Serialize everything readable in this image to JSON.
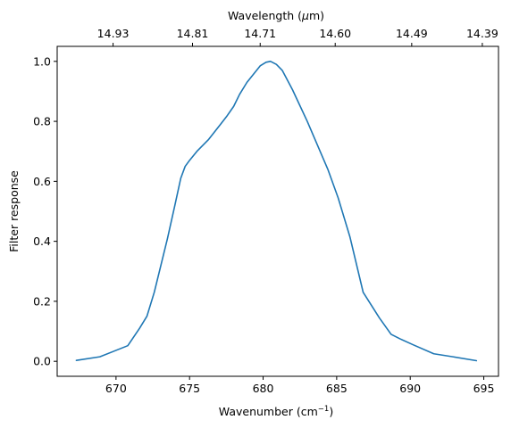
{
  "chart_data": {
    "type": "line",
    "xlabel": "Wavenumber (cm",
    "xlabel_sup": "−1",
    "xlabel_suffix": ")",
    "ylabel": "Filter response",
    "top_xlabel_prefix": "Wavelength (",
    "top_xlabel_symbol": "μ",
    "top_xlabel_suffix": "m)",
    "xlim": [
      666,
      696
    ],
    "ylim": [
      -0.05,
      1.05
    ],
    "x_ticks": [
      670,
      675,
      680,
      685,
      690,
      695
    ],
    "y_ticks": [
      0.0,
      0.2,
      0.4,
      0.6,
      0.8,
      1.0
    ],
    "y_tick_labels": [
      "0.0",
      "0.2",
      "0.4",
      "0.6",
      "0.8",
      "1.0"
    ],
    "top_ticks": [
      {
        "label": "14.93",
        "wavenumber": 669.8
      },
      {
        "label": "14.81",
        "wavenumber": 675.2
      },
      {
        "label": "14.71",
        "wavenumber": 679.8
      },
      {
        "label": "14.60",
        "wavenumber": 684.9
      },
      {
        "label": "14.49",
        "wavenumber": 690.1
      },
      {
        "label": "14.39",
        "wavenumber": 694.9
      }
    ],
    "line_color": "#1f77b4",
    "series": [
      {
        "x": [
          667.3,
          668.9,
          670.8,
          671.6,
          672.1,
          672.6,
          673.0,
          673.5,
          674.0,
          674.4,
          674.7,
          675.0,
          675.5,
          676.3,
          677.1,
          677.5,
          678.0,
          678.4,
          678.9,
          679.8,
          680.2,
          680.5,
          680.9,
          681.3,
          682.0,
          683.0,
          684.4,
          685.1,
          685.9,
          686.8,
          687.9,
          688.7,
          689.3,
          690.2,
          691.6,
          692.9,
          694.5
        ],
        "y": [
          0.003,
          0.015,
          0.052,
          0.11,
          0.15,
          0.23,
          0.31,
          0.41,
          0.52,
          0.61,
          0.65,
          0.67,
          0.7,
          0.74,
          0.79,
          0.815,
          0.85,
          0.89,
          0.93,
          0.985,
          0.997,
          1.0,
          0.99,
          0.97,
          0.905,
          0.8,
          0.64,
          0.545,
          0.415,
          0.23,
          0.145,
          0.09,
          0.075,
          0.055,
          0.025,
          0.015,
          0.002
        ]
      }
    ]
  }
}
